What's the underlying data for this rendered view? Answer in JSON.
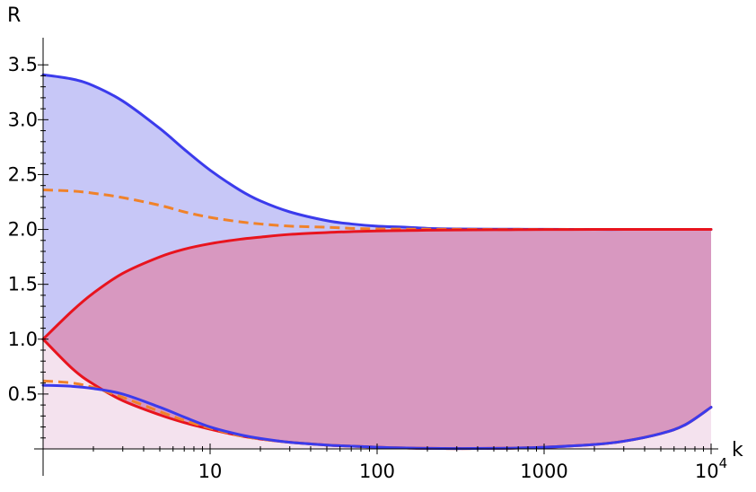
{
  "chart_data": {
    "type": "line",
    "xlabel": "k",
    "ylabel": "R",
    "x_scale": "log",
    "xlim": [
      1,
      10000
    ],
    "ylim": [
      0,
      3.6
    ],
    "x_ticks": [
      {
        "value": 10,
        "base": "10",
        "exp": ""
      },
      {
        "value": 100,
        "base": "100",
        "exp": ""
      },
      {
        "value": 1000,
        "base": "1000",
        "exp": ""
      },
      {
        "value": 10000,
        "base": "10",
        "exp": "4"
      }
    ],
    "y_ticks": [
      {
        "value": 0.5,
        "label": "0.5"
      },
      {
        "value": 1.0,
        "label": "1.0"
      },
      {
        "value": 1.5,
        "label": "1.5"
      },
      {
        "value": 2.0,
        "label": "2.0"
      },
      {
        "value": 2.5,
        "label": "2.5"
      },
      {
        "value": 3.0,
        "label": "3.0"
      },
      {
        "value": 3.5,
        "label": "3.5"
      }
    ],
    "x": [
      1,
      1.5,
      2,
      3,
      5,
      7,
      10,
      15,
      20,
      30,
      50,
      70,
      100,
      150,
      200,
      300,
      500,
      700,
      1000,
      2000,
      3000,
      5000,
      7000,
      10000
    ],
    "series": [
      {
        "style": "solid",
        "color": "#3b3bec",
        "values": [
          3.41,
          3.37,
          3.31,
          3.17,
          2.92,
          2.73,
          2.54,
          2.36,
          2.26,
          2.16,
          2.08,
          2.05,
          2.03,
          2.02,
          2.01,
          2.005,
          2.003,
          2.002,
          2.001,
          2.0,
          2.0,
          2.0,
          2.0,
          2.0
        ]
      },
      {
        "style": "dashed",
        "color": "#f0822a",
        "values": [
          2.36,
          2.35,
          2.33,
          2.29,
          2.22,
          2.16,
          2.11,
          2.07,
          2.05,
          2.03,
          2.02,
          2.01,
          2.005,
          2.003,
          2.002,
          2.001,
          2.0,
          2.0,
          2.0,
          2.0,
          2.0,
          2.0,
          2.0,
          2.0
        ]
      },
      {
        "style": "solid",
        "color": "#e8141e",
        "values": [
          1.0,
          1.26,
          1.42,
          1.6,
          1.75,
          1.82,
          1.87,
          1.91,
          1.93,
          1.955,
          1.972,
          1.98,
          1.986,
          1.99,
          1.993,
          1.995,
          1.997,
          1.998,
          1.999,
          2.0,
          2.0,
          2.0,
          2.0,
          2.0
        ]
      },
      {
        "style": "solid",
        "color": "#e8141e",
        "values": [
          1.0,
          0.73,
          0.59,
          0.44,
          0.31,
          0.24,
          0.18,
          0.12,
          0.09,
          0.06,
          0.035,
          0.025,
          0.015,
          0.008,
          0.005,
          0.003,
          0.005,
          0.008,
          0.015,
          0.04,
          0.07,
          0.14,
          0.22,
          0.38
        ]
      },
      {
        "style": "dashed",
        "color": "#f0822a",
        "values": [
          0.62,
          0.6,
          0.56,
          0.47,
          0.34,
          0.26,
          0.19,
          0.12,
          0.09,
          0.06,
          0.035,
          0.025,
          0.015,
          0.008,
          0.005,
          0.003,
          0.005,
          0.008,
          0.015,
          0.04,
          0.07,
          0.14,
          0.22,
          0.38
        ]
      },
      {
        "style": "solid",
        "color": "#3b3bec",
        "values": [
          0.58,
          0.57,
          0.55,
          0.5,
          0.38,
          0.29,
          0.2,
          0.13,
          0.095,
          0.06,
          0.035,
          0.025,
          0.015,
          0.008,
          0.005,
          0.003,
          0.005,
          0.008,
          0.015,
          0.04,
          0.07,
          0.14,
          0.22,
          0.38
        ]
      }
    ],
    "fill_regions": [
      {
        "upper_series": 0,
        "lower_series": 5,
        "color": "#c7c7f7"
      },
      {
        "upper_series": 2,
        "lower_series": 3,
        "color": "#d898c0"
      },
      {
        "upper_series": 3,
        "lower_series": "axis",
        "color": "#f4e2ee"
      }
    ]
  }
}
